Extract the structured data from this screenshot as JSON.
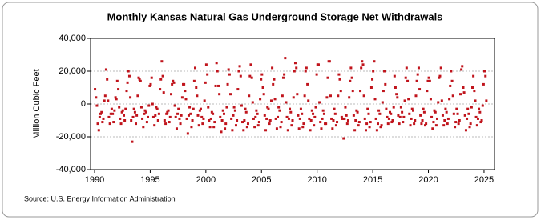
{
  "chart_data": {
    "type": "scatter",
    "title": "Monthly Kansas Natural Gas Underground Storage Net Withdrawals",
    "y_label": "Million Cubic Feet",
    "source": "Source: U.S. Energy Information Administration",
    "xlim": [
      1989.64,
      2025.94
    ],
    "xticks": [
      1990,
      1995,
      2000,
      2005,
      2010,
      2015,
      2020,
      2025
    ],
    "ylim": [
      -40000,
      40000
    ],
    "yticks": [
      {
        "value": -40000,
        "label": "-40,000"
      },
      {
        "value": -20000,
        "label": "-20,000"
      },
      0,
      {
        "value": 20000,
        "label": "20,000"
      },
      {
        "value": 40000,
        "label": "40,000"
      }
    ],
    "grid": true,
    "series": [
      {
        "color": "#c0141c",
        "x": [
          1990.04,
          1990.13,
          1990.21,
          1990.29,
          1990.38,
          1990.46,
          1990.54,
          1990.63,
          1990.71,
          1990.79,
          1990.88,
          1990.96,
          1991.04,
          1991.13,
          1991.21,
          1991.29,
          1991.38,
          1991.46,
          1991.54,
          1991.63,
          1991.71,
          1991.79,
          1991.88,
          1991.96,
          1992.04,
          1992.13,
          1992.21,
          1992.29,
          1992.38,
          1992.46,
          1992.54,
          1992.63,
          1992.71,
          1992.79,
          1992.88,
          1992.96,
          1993.04,
          1993.13,
          1993.21,
          1993.29,
          1993.38,
          1993.46,
          1993.54,
          1993.63,
          1993.71,
          1993.79,
          1993.88,
          1993.96,
          1994.04,
          1994.13,
          1994.21,
          1994.29,
          1994.38,
          1994.46,
          1994.54,
          1994.63,
          1994.71,
          1994.79,
          1994.88,
          1994.96,
          1995.04,
          1995.13,
          1995.21,
          1995.29,
          1995.38,
          1995.46,
          1995.54,
          1995.63,
          1995.71,
          1995.79,
          1995.88,
          1995.96,
          1996.04,
          1996.13,
          1996.21,
          1996.29,
          1996.38,
          1996.46,
          1996.54,
          1996.63,
          1996.71,
          1996.79,
          1996.88,
          1996.96,
          1997.04,
          1997.13,
          1997.21,
          1997.29,
          1997.38,
          1997.46,
          1997.54,
          1997.63,
          1997.71,
          1997.79,
          1997.88,
          1997.96,
          1998.04,
          1998.13,
          1998.21,
          1998.29,
          1998.38,
          1998.46,
          1998.54,
          1998.63,
          1998.71,
          1998.79,
          1998.88,
          1998.96,
          1999.04,
          1999.13,
          1999.21,
          1999.29,
          1999.38,
          1999.46,
          1999.54,
          1999.63,
          1999.71,
          1999.79,
          1999.88,
          1999.96,
          2000.04,
          2000.13,
          2000.21,
          2000.29,
          2000.38,
          2000.46,
          2000.54,
          2000.63,
          2000.71,
          2000.79,
          2000.88,
          2000.96,
          2001.04,
          2001.13,
          2001.21,
          2001.29,
          2001.38,
          2001.46,
          2001.54,
          2001.63,
          2001.71,
          2001.79,
          2001.88,
          2001.96,
          2002.04,
          2002.13,
          2002.21,
          2002.29,
          2002.38,
          2002.46,
          2002.54,
          2002.63,
          2002.71,
          2002.79,
          2002.88,
          2002.96,
          2003.04,
          2003.13,
          2003.21,
          2003.29,
          2003.38,
          2003.46,
          2003.54,
          2003.63,
          2003.71,
          2003.79,
          2003.88,
          2003.96,
          2004.04,
          2004.13,
          2004.21,
          2004.29,
          2004.38,
          2004.46,
          2004.54,
          2004.63,
          2004.71,
          2004.79,
          2004.88,
          2004.96,
          2005.04,
          2005.13,
          2005.21,
          2005.29,
          2005.38,
          2005.46,
          2005.54,
          2005.63,
          2005.71,
          2005.79,
          2005.88,
          2005.96,
          2006.04,
          2006.13,
          2006.21,
          2006.29,
          2006.38,
          2006.46,
          2006.54,
          2006.63,
          2006.71,
          2006.79,
          2006.88,
          2006.96,
          2007.04,
          2007.13,
          2007.21,
          2007.29,
          2007.38,
          2007.46,
          2007.54,
          2007.63,
          2007.71,
          2007.79,
          2007.88,
          2007.96,
          2008.04,
          2008.13,
          2008.21,
          2008.29,
          2008.38,
          2008.46,
          2008.54,
          2008.63,
          2008.71,
          2008.79,
          2008.88,
          2008.96,
          2009.04,
          2009.13,
          2009.21,
          2009.29,
          2009.38,
          2009.46,
          2009.54,
          2009.63,
          2009.71,
          2009.79,
          2009.88,
          2009.96,
          2010.04,
          2010.13,
          2010.21,
          2010.29,
          2010.38,
          2010.46,
          2010.54,
          2010.63,
          2010.71,
          2010.79,
          2010.88,
          2010.96,
          2011.04,
          2011.13,
          2011.21,
          2011.29,
          2011.38,
          2011.46,
          2011.54,
          2011.63,
          2011.71,
          2011.79,
          2011.88,
          2011.96,
          2012.04,
          2012.13,
          2012.21,
          2012.29,
          2012.38,
          2012.46,
          2012.54,
          2012.63,
          2012.71,
          2012.79,
          2012.88,
          2012.96,
          2013.04,
          2013.13,
          2013.21,
          2013.29,
          2013.38,
          2013.46,
          2013.54,
          2013.63,
          2013.71,
          2013.79,
          2013.88,
          2013.96,
          2014.04,
          2014.13,
          2014.21,
          2014.29,
          2014.38,
          2014.46,
          2014.54,
          2014.63,
          2014.71,
          2014.79,
          2014.88,
          2014.96,
          2015.04,
          2015.13,
          2015.21,
          2015.29,
          2015.38,
          2015.46,
          2015.54,
          2015.63,
          2015.71,
          2015.79,
          2015.88,
          2015.96,
          2016.04,
          2016.13,
          2016.21,
          2016.29,
          2016.38,
          2016.46,
          2016.54,
          2016.63,
          2016.71,
          2016.79,
          2016.88,
          2016.96,
          2017.04,
          2017.13,
          2017.21,
          2017.29,
          2017.38,
          2017.46,
          2017.54,
          2017.63,
          2017.71,
          2017.79,
          2017.88,
          2017.96,
          2018.04,
          2018.13,
          2018.21,
          2018.29,
          2018.38,
          2018.46,
          2018.54,
          2018.63,
          2018.71,
          2018.79,
          2018.88,
          2018.96,
          2019.04,
          2019.13,
          2019.21,
          2019.29,
          2019.38,
          2019.46,
          2019.54,
          2019.63,
          2019.71,
          2019.79,
          2019.88,
          2019.96,
          2020.04,
          2020.13,
          2020.21,
          2020.29,
          2020.38,
          2020.46,
          2020.54,
          2020.63,
          2020.71,
          2020.79,
          2020.88,
          2020.96,
          2021.04,
          2021.13,
          2021.21,
          2021.29,
          2021.38,
          2021.46,
          2021.54,
          2021.63,
          2021.71,
          2021.79,
          2021.88,
          2021.96,
          2022.04,
          2022.13,
          2022.21,
          2022.29,
          2022.38,
          2022.46,
          2022.54,
          2022.63,
          2022.71,
          2022.79,
          2022.88,
          2022.96,
          2023.04,
          2023.13,
          2023.21,
          2023.29,
          2023.38,
          2023.46,
          2023.54,
          2023.63,
          2023.71,
          2023.79,
          2023.88,
          2023.96,
          2024.04,
          2024.13,
          2024.21,
          2024.29,
          2024.38,
          2024.46,
          2024.54,
          2024.63,
          2024.71,
          2024.79,
          2024.88,
          2024.96,
          2025.04,
          2025.13,
          2025.21
        ],
        "values": [
          9000,
          4000,
          -1000,
          -12000,
          -16000,
          -8000,
          -6000,
          -5000,
          -11000,
          -9000,
          2000,
          5000,
          21000,
          15000,
          2000,
          -8000,
          -12000,
          -6000,
          -3000,
          -6000,
          -11000,
          -4000,
          4000,
          3000,
          14000,
          9000,
          -2000,
          -9000,
          -12000,
          -5000,
          -4000,
          -7000,
          -10000,
          -3000,
          8000,
          13000,
          20000,
          17000,
          4000,
          -10000,
          -23000,
          -8000,
          -3000,
          -5000,
          -12000,
          -7000,
          5000,
          16000,
          15000,
          14000,
          -2000,
          -9000,
          -14000,
          -6000,
          -4000,
          -5000,
          -11000,
          -8000,
          -1000,
          11000,
          12000,
          16000,
          0,
          -8000,
          -13000,
          -7000,
          -2000,
          -3000,
          -10000,
          -6000,
          9000,
          15000,
          26000,
          17000,
          7000,
          -10000,
          -12000,
          -6000,
          -5000,
          -4000,
          -11000,
          -8000,
          6000,
          12000,
          14000,
          13000,
          -1000,
          -8000,
          -15000,
          -6000,
          -3000,
          -9000,
          -12000,
          -7000,
          4000,
          12000,
          12000,
          8000,
          3000,
          -9000,
          -18000,
          -7000,
          -2000,
          -6000,
          -14000,
          -10000,
          -3000,
          14000,
          22000,
          10000,
          5000,
          -7000,
          -13000,
          -4000,
          -3000,
          -8000,
          -12000,
          -9000,
          2000,
          13000,
          24000,
          18000,
          -2000,
          -10000,
          -14000,
          -9000,
          -5000,
          -6000,
          -14000,
          -11000,
          11000,
          25000,
          20000,
          11000,
          6000,
          -8000,
          -17000,
          -10000,
          -4000,
          -6000,
          -15000,
          -12000,
          -2000,
          12000,
          21000,
          18000,
          6000,
          -9000,
          -16000,
          -7000,
          -2000,
          -4000,
          -13000,
          -10000,
          9000,
          20000,
          23000,
          17000,
          -1000,
          -11000,
          -16000,
          -10000,
          -3000,
          -5000,
          -14000,
          -12000,
          5000,
          17000,
          24000,
          16000,
          1000,
          -9000,
          -14000,
          -8000,
          -4000,
          -6000,
          -13000,
          -11000,
          3000,
          15000,
          18000,
          10000,
          6000,
          -7000,
          -16000,
          -9000,
          -2000,
          -3000,
          -12000,
          -10000,
          2000,
          22000,
          12000,
          15000,
          3000,
          -9000,
          -15000,
          -8000,
          -2000,
          -4000,
          -14000,
          -11000,
          5000,
          16000,
          18000,
          28000,
          1000,
          -8000,
          -16000,
          -9000,
          -3000,
          -5000,
          -13000,
          -10000,
          4000,
          20000,
          25000,
          22000,
          6000,
          -7000,
          -15000,
          -9000,
          -3000,
          -6000,
          -14000,
          -12000,
          5000,
          20000,
          22000,
          12000,
          2000,
          -9000,
          -16000,
          -10000,
          -4000,
          -6000,
          -13000,
          -8000,
          -2000,
          18000,
          24000,
          24000,
          1000,
          -11000,
          -15000,
          -9000,
          -4000,
          -6000,
          -12000,
          -12000,
          4000,
          16000,
          26000,
          26000,
          5000,
          -9000,
          -15000,
          -10000,
          -3000,
          -6000,
          -13000,
          -11000,
          5000,
          18000,
          15000,
          8000,
          -8000,
          -9000,
          -21000,
          -9000,
          -2000,
          -7000,
          -12000,
          -10000,
          4000,
          14000,
          22000,
          16000,
          8000,
          -7000,
          -16000,
          -10000,
          -4000,
          -5000,
          -13000,
          -11000,
          8000,
          22000,
          26000,
          24000,
          5000,
          -9000,
          -16000,
          -12000,
          -3000,
          -6000,
          -14000,
          -11000,
          10000,
          15000,
          20000,
          26000,
          3000,
          -9000,
          -16000,
          -12000,
          -4000,
          -6000,
          -14000,
          -13000,
          1000,
          8000,
          20000,
          12000,
          -3000,
          -8000,
          -12000,
          -9000,
          -5000,
          -6000,
          -11000,
          -10000,
          -2000,
          17000,
          10000,
          6000,
          4000,
          -7000,
          -12000,
          -8000,
          -2000,
          -5000,
          -11000,
          -8000,
          2000,
          16000,
          22000,
          14000,
          3000,
          -6000,
          -13000,
          -9000,
          -3000,
          -4000,
          -12000,
          -10000,
          5000,
          14000,
          18000,
          22000,
          9000,
          -7000,
          -12000,
          -10000,
          -3000,
          -5000,
          -13000,
          -12000,
          8000,
          14000,
          16000,
          14000,
          3000,
          -8000,
          -15000,
          -11000,
          -4000,
          -5000,
          -13000,
          -9000,
          1000,
          16000,
          17000,
          22000,
          2000,
          -7000,
          -13000,
          -10000,
          -3000,
          -5000,
          -12000,
          -9000,
          3000,
          11000,
          20000,
          14000,
          5000,
          -6000,
          -14000,
          -11000,
          -3000,
          -6000,
          -12000,
          -10000,
          6000,
          21000,
          23000,
          10000,
          7000,
          -7000,
          -16000,
          -9000,
          -3000,
          -6000,
          -14000,
          -12000,
          -2000,
          10000,
          17000,
          8000,
          2000,
          -8000,
          -13000,
          -9000,
          -3000,
          -5000,
          -11000,
          -10000,
          -1000,
          12000,
          20000,
          17000,
          2000
        ]
      }
    ]
  }
}
